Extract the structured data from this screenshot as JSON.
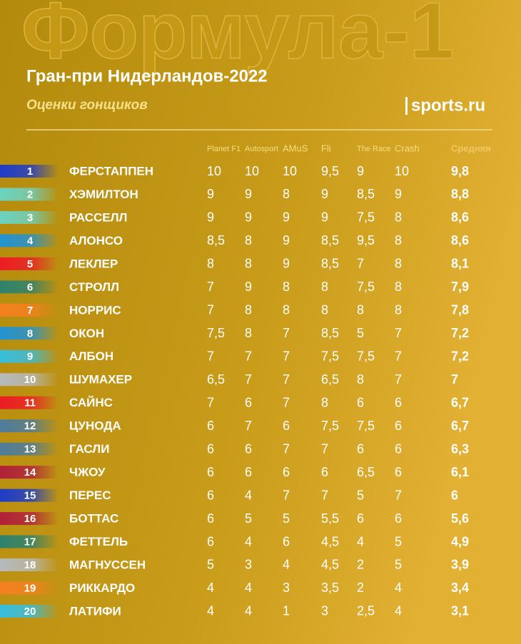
{
  "header": {
    "watermark": "Формула-1",
    "title": "Гран-при Нидерландов-2022",
    "subtitle": "Оценки гонщиков",
    "logo": "sports.ru"
  },
  "table": {
    "columns": [
      "Planet F1",
      "Autosport",
      "AMuS",
      "Fli",
      "The Race",
      "Crash",
      "Средняя"
    ],
    "rows": [
      {
        "rank": 1,
        "name": "ФЕРСТАППЕН",
        "color": "#1e3cc8",
        "scores": [
          "10",
          "10",
          "10",
          "9,5",
          "9",
          "10"
        ],
        "average": "9,8"
      },
      {
        "rank": 2,
        "name": "ХЭМИЛТОН",
        "color": "#6cd3bf",
        "scores": [
          "9",
          "9",
          "8",
          "9",
          "8,5",
          "9"
        ],
        "average": "8,8"
      },
      {
        "rank": 3,
        "name": "РАССЕЛЛ",
        "color": "#6cd3bf",
        "scores": [
          "9",
          "9",
          "9",
          "9",
          "7,5",
          "8"
        ],
        "average": "8,6"
      },
      {
        "rank": 4,
        "name": "АЛОНСО",
        "color": "#2293d1",
        "scores": [
          "8,5",
          "8",
          "9",
          "8,5",
          "9,5",
          "8"
        ],
        "average": "8,6"
      },
      {
        "rank": 5,
        "name": "ЛЕКЛЕР",
        "color": "#ed1c24",
        "scores": [
          "8",
          "8",
          "9",
          "8,5",
          "7",
          "8"
        ],
        "average": "8,1"
      },
      {
        "rank": 6,
        "name": "СТРОЛЛ",
        "color": "#2d826d",
        "scores": [
          "7",
          "9",
          "8",
          "8",
          "7,5",
          "8"
        ],
        "average": "7,9"
      },
      {
        "rank": 7,
        "name": "НОРРИС",
        "color": "#f58020",
        "scores": [
          "7",
          "8",
          "8",
          "8",
          "8",
          "8"
        ],
        "average": "7,8"
      },
      {
        "rank": 8,
        "name": "ОКОН",
        "color": "#2293d1",
        "scores": [
          "7,5",
          "8",
          "7",
          "8,5",
          "5",
          "7"
        ],
        "average": "7,2"
      },
      {
        "rank": 9,
        "name": "АЛБОН",
        "color": "#37bedd",
        "scores": [
          "7",
          "7",
          "7",
          "7,5",
          "7,5",
          "7"
        ],
        "average": "7,2"
      },
      {
        "rank": 10,
        "name": "ШУМАХЕР",
        "color": "#b6babd",
        "scores": [
          "6,5",
          "7",
          "7",
          "6,5",
          "8",
          "7"
        ],
        "average": "7"
      },
      {
        "rank": 11,
        "name": "САЙНС",
        "color": "#ed1c24",
        "scores": [
          "7",
          "6",
          "7",
          "8",
          "6",
          "6"
        ],
        "average": "6,7"
      },
      {
        "rank": 12,
        "name": "ЦУНОДА",
        "color": "#4e7c9b",
        "scores": [
          "6",
          "7",
          "6",
          "7,5",
          "7,5",
          "6"
        ],
        "average": "6,7"
      },
      {
        "rank": 13,
        "name": "ГАСЛИ",
        "color": "#4e7c9b",
        "scores": [
          "6",
          "6",
          "7",
          "7",
          "6",
          "6"
        ],
        "average": "6,3"
      },
      {
        "rank": 14,
        "name": "ЧЖОУ",
        "color": "#b12039",
        "scores": [
          "6",
          "6",
          "6",
          "6",
          "6,5",
          "6"
        ],
        "average": "6,1"
      },
      {
        "rank": 15,
        "name": "ПЕРЕС",
        "color": "#1e3cc8",
        "scores": [
          "6",
          "4",
          "7",
          "7",
          "5",
          "7"
        ],
        "average": "6"
      },
      {
        "rank": 16,
        "name": "БОТТАС",
        "color": "#b12039",
        "scores": [
          "6",
          "5",
          "5",
          "5,5",
          "6",
          "6"
        ],
        "average": "5,6"
      },
      {
        "rank": 17,
        "name": "ФЕТТЕЛЬ",
        "color": "#2d826d",
        "scores": [
          "6",
          "4",
          "6",
          "4,5",
          "4",
          "5"
        ],
        "average": "4,9"
      },
      {
        "rank": 18,
        "name": "МАГНУССЕН",
        "color": "#b6babd",
        "scores": [
          "5",
          "3",
          "4",
          "4,5",
          "2",
          "5"
        ],
        "average": "3,9"
      },
      {
        "rank": 19,
        "name": "РИККАРДО",
        "color": "#f58020",
        "scores": [
          "4",
          "4",
          "3",
          "3,5",
          "2",
          "4"
        ],
        "average": "3,4"
      },
      {
        "rank": 20,
        "name": "ЛАТИФИ",
        "color": "#37bedd",
        "scores": [
          "4",
          "4",
          "1",
          "3",
          "2,5",
          "4"
        ],
        "average": "3,1"
      }
    ]
  }
}
